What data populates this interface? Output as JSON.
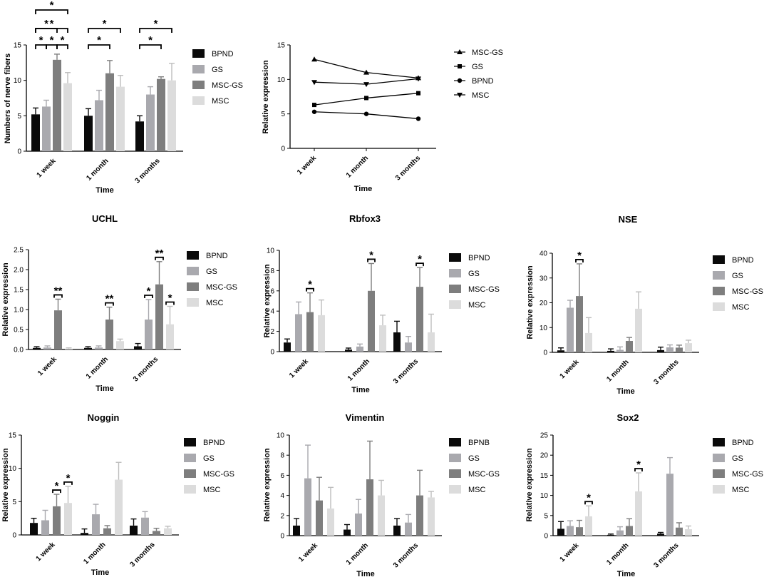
{
  "colors": {
    "BPND": "#0a0a0a",
    "GS": "#a9a9ae",
    "MSC-GS": "#7e7e7e",
    "MSC": "#dcdcdc",
    "BPNB": "#0a0a0a"
  },
  "chart_data": [
    {
      "id": "fibers",
      "type": "bar",
      "title": "",
      "xlabel": "Time",
      "ylabel": "Numbers of nerve fibers",
      "ylim": [
        0,
        15
      ],
      "yticks": [
        0,
        5,
        10,
        15
      ],
      "categories": [
        "1 week",
        "1 month",
        "3 months"
      ],
      "series": [
        {
          "name": "BPND",
          "values": [
            5.2,
            5.0,
            4.2
          ],
          "errors": [
            0.9,
            1.0,
            0.8
          ]
        },
        {
          "name": "GS",
          "values": [
            6.3,
            7.2,
            8.0
          ],
          "errors": [
            0.9,
            1.4,
            1.1
          ]
        },
        {
          "name": "MSC-GS",
          "values": [
            12.9,
            11.0,
            10.2
          ],
          "errors": [
            0.8,
            1.8,
            0.3
          ]
        },
        {
          "name": "MSC",
          "values": [
            9.6,
            9.1,
            10.0
          ],
          "errors": [
            1.5,
            1.6,
            2.4
          ]
        }
      ],
      "significance": [
        {
          "group": 0,
          "from": 0,
          "to": 3,
          "label": "*",
          "level": 4
        },
        {
          "group": 0,
          "from": 0,
          "to": 2,
          "label": "*",
          "level": 3
        },
        {
          "group": 0,
          "from": 0,
          "to": 3,
          "label": "*",
          "level": 2
        },
        {
          "group": 0,
          "from": 0,
          "to": 1,
          "label": "*",
          "level": 1
        },
        {
          "group": 0,
          "from": 1,
          "to": 2,
          "label": "*",
          "level": 1
        },
        {
          "group": 0,
          "from": 2,
          "to": 3,
          "label": "*",
          "level": 1
        },
        {
          "group": 1,
          "from": 0,
          "to": 3,
          "label": "*",
          "level": 2
        },
        {
          "group": 1,
          "from": 0,
          "to": 2,
          "label": "*",
          "level": 1
        },
        {
          "group": 2,
          "from": 0,
          "to": 3,
          "label": "*",
          "level": 2
        },
        {
          "group": 2,
          "from": 0,
          "to": 2,
          "label": "*",
          "level": 1
        }
      ]
    },
    {
      "id": "lines",
      "type": "line",
      "title": "",
      "xlabel": "Time",
      "ylabel": "Relative expression",
      "ylim": [
        0,
        15
      ],
      "yticks": [
        0,
        5,
        10,
        15
      ],
      "categories": [
        "1 week",
        "1 month",
        "3 months"
      ],
      "series": [
        {
          "name": "MSC-GS",
          "marker": "triangle-up",
          "values": [
            12.9,
            11.0,
            10.2
          ]
        },
        {
          "name": "GS",
          "marker": "square",
          "values": [
            6.3,
            7.3,
            8.0
          ]
        },
        {
          "name": "BPND",
          "marker": "circle",
          "values": [
            5.3,
            5.0,
            4.3
          ]
        },
        {
          "name": "MSC",
          "marker": "triangle-down",
          "values": [
            9.6,
            9.3,
            10.1
          ]
        }
      ]
    },
    {
      "id": "uchl",
      "type": "bar",
      "title": "UCHL",
      "xlabel": "Time",
      "ylabel": "Relative expression",
      "ylim": [
        0,
        2.5
      ],
      "yticks": [
        0.0,
        0.5,
        1.0,
        1.5,
        2.0,
        2.5
      ],
      "tickDecimals": 1,
      "categories": [
        "1 week",
        "1 month",
        "3 months"
      ],
      "series": [
        {
          "name": "BPND",
          "values": [
            0.04,
            0.04,
            0.08
          ],
          "errors": [
            0.03,
            0.03,
            0.07
          ]
        },
        {
          "name": "GS",
          "values": [
            0.05,
            0.05,
            0.75
          ],
          "errors": [
            0.04,
            0.04,
            0.5
          ]
        },
        {
          "name": "MSC-GS",
          "values": [
            0.98,
            0.75,
            1.63
          ],
          "errors": [
            0.28,
            0.31,
            0.57
          ]
        },
        {
          "name": "MSC",
          "values": [
            0.02,
            0.21,
            0.63
          ],
          "errors": [
            0.02,
            0.05,
            0.45
          ]
        }
      ],
      "significance": [
        {
          "group": 0,
          "from": 2,
          "to": 2,
          "label": "**"
        },
        {
          "group": 1,
          "from": 2,
          "to": 2,
          "label": "**"
        },
        {
          "group": 2,
          "from": 1,
          "to": 1,
          "label": "*"
        },
        {
          "group": 2,
          "from": 2,
          "to": 2,
          "label": "**"
        },
        {
          "group": 2,
          "from": 3,
          "to": 3,
          "label": "*"
        }
      ]
    },
    {
      "id": "rbfox3",
      "type": "bar",
      "title": "Rbfox3",
      "xlabel": "Time",
      "ylabel": "Relative expression",
      "ylim": [
        0,
        10
      ],
      "yticks": [
        0,
        2,
        4,
        6,
        8,
        10
      ],
      "categories": [
        "1 week",
        "1 month",
        "3 months"
      ],
      "series": [
        {
          "name": "BPND",
          "values": [
            0.9,
            0.2,
            1.9
          ],
          "errors": [
            0.35,
            0.15,
            1.1
          ]
        },
        {
          "name": "GS",
          "values": [
            3.7,
            0.5,
            0.9
          ],
          "errors": [
            1.2,
            0.25,
            0.6
          ]
        },
        {
          "name": "MSC-GS",
          "values": [
            3.9,
            6.0,
            6.4
          ],
          "errors": [
            1.9,
            2.7,
            1.9
          ]
        },
        {
          "name": "MSC",
          "values": [
            3.6,
            2.6,
            1.9
          ],
          "errors": [
            1.5,
            1.0,
            1.8
          ]
        }
      ],
      "significance": [
        {
          "group": 0,
          "from": 2,
          "to": 2,
          "label": "*"
        },
        {
          "group": 1,
          "from": 2,
          "to": 2,
          "label": "*"
        },
        {
          "group": 2,
          "from": 2,
          "to": 2,
          "label": "*"
        }
      ]
    },
    {
      "id": "nse",
      "type": "bar",
      "title": "NSE",
      "xlabel": "Time",
      "ylabel": "Relative expression",
      "ylim": [
        0,
        40
      ],
      "yticks": [
        0,
        10,
        20,
        30,
        40
      ],
      "categories": [
        "1 week",
        "1 month",
        "3 months"
      ],
      "series": [
        {
          "name": "BPND",
          "values": [
            0.8,
            0.6,
            0.9
          ],
          "errors": [
            1.0,
            0.8,
            1.2
          ]
        },
        {
          "name": "GS",
          "values": [
            18.0,
            1.0,
            2.0
          ],
          "errors": [
            3.0,
            1.2,
            1.0
          ]
        },
        {
          "name": "MSC-GS",
          "values": [
            22.7,
            4.6,
            1.9
          ],
          "errors": [
            13.0,
            1.4,
            1.0
          ]
        },
        {
          "name": "MSC",
          "values": [
            7.8,
            17.6,
            3.7
          ],
          "errors": [
            6.2,
            6.8,
            1.2
          ]
        }
      ],
      "significance": [
        {
          "group": 0,
          "from": 2,
          "to": 2,
          "label": "*"
        }
      ]
    },
    {
      "id": "noggin",
      "type": "bar",
      "title": "Noggin",
      "xlabel": "Time",
      "ylabel": "Relative expression",
      "ylim": [
        0,
        15
      ],
      "yticks": [
        0,
        5,
        10,
        15
      ],
      "categories": [
        "1 week",
        "1 month",
        "3 months"
      ],
      "series": [
        {
          "name": "BPND",
          "values": [
            1.8,
            0.3,
            1.4
          ],
          "errors": [
            0.7,
            0.6,
            1.0
          ]
        },
        {
          "name": "GS",
          "values": [
            2.2,
            3.1,
            2.6
          ],
          "errors": [
            1.5,
            1.5,
            0.9
          ]
        },
        {
          "name": "MSC-GS",
          "values": [
            4.3,
            1.0,
            0.6
          ],
          "errors": [
            1.8,
            0.4,
            0.4
          ]
        },
        {
          "name": "MSC",
          "values": [
            4.8,
            8.3,
            1.0
          ],
          "errors": [
            2.5,
            2.6,
            0.3
          ]
        }
      ],
      "significance": [
        {
          "group": 0,
          "from": 2,
          "to": 2,
          "label": "*"
        },
        {
          "group": 0,
          "from": 3,
          "to": 3,
          "label": "*"
        }
      ]
    },
    {
      "id": "vimentin",
      "type": "bar",
      "title": "Vimentin",
      "xlabel": "Time",
      "ylabel": "Relative expression",
      "ylim": [
        0,
        10
      ],
      "yticks": [
        0,
        2,
        4,
        6,
        8,
        10
      ],
      "categories": [
        "1 week",
        "1 month",
        "3 months"
      ],
      "series": [
        {
          "name": "BPNB",
          "values": [
            1.0,
            0.6,
            1.0
          ],
          "errors": [
            0.7,
            0.5,
            0.7
          ]
        },
        {
          "name": "GS",
          "values": [
            5.7,
            2.2,
            1.3
          ],
          "errors": [
            3.3,
            1.4,
            0.8
          ]
        },
        {
          "name": "MSC-GS",
          "values": [
            3.5,
            5.6,
            4.0
          ],
          "errors": [
            2.3,
            3.8,
            2.5
          ]
        },
        {
          "name": "MSC",
          "values": [
            2.7,
            4.0,
            3.8
          ],
          "errors": [
            2.1,
            1.5,
            0.6
          ]
        }
      ]
    },
    {
      "id": "sox2",
      "type": "bar",
      "title": "Sox2",
      "xlabel": "Time",
      "ylabel": "Relative expression",
      "ylim": [
        0,
        25
      ],
      "yticks": [
        0,
        5,
        10,
        15,
        20,
        25
      ],
      "categories": [
        "1 week",
        "1 month",
        "3 months"
      ],
      "series": [
        {
          "name": "BPND",
          "values": [
            1.7,
            0.2,
            0.5
          ],
          "errors": [
            1.8,
            0.2,
            0.3
          ]
        },
        {
          "name": "GS",
          "values": [
            2.4,
            1.3,
            15.4
          ],
          "errors": [
            1.3,
            0.9,
            4.0
          ]
        },
        {
          "name": "MSC-GS",
          "values": [
            2.1,
            2.4,
            2.0
          ],
          "errors": [
            1.7,
            1.8,
            1.2
          ]
        },
        {
          "name": "MSC",
          "values": [
            4.8,
            11.0,
            1.6
          ],
          "errors": [
            2.6,
            4.6,
            0.8
          ]
        }
      ],
      "significance": [
        {
          "group": 0,
          "from": 3,
          "to": 3,
          "label": "*"
        },
        {
          "group": 1,
          "from": 3,
          "to": 3,
          "label": "*"
        }
      ]
    }
  ]
}
